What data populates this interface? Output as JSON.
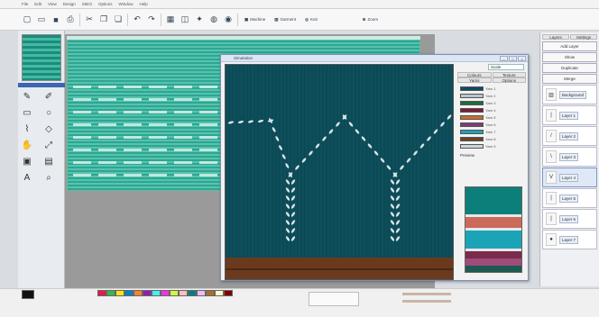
{
  "menu": [
    "File",
    "Edit",
    "View",
    "Design",
    "Stitch",
    "Options",
    "Window",
    "Help"
  ],
  "toolbar": {
    "zoom_label": "Zoom",
    "buttons": [
      {
        "icon": "new-file-icon",
        "glyph": "▢"
      },
      {
        "icon": "open-folder-icon",
        "glyph": "▭"
      },
      {
        "icon": "save-icon",
        "glyph": "■"
      },
      {
        "icon": "print-icon",
        "glyph": "⎙"
      },
      {
        "icon": "cut-icon",
        "glyph": "✂"
      },
      {
        "icon": "copy-icon",
        "glyph": "❐"
      },
      {
        "icon": "paste-icon",
        "glyph": "❏"
      },
      {
        "icon": "undo-icon",
        "glyph": "↶"
      },
      {
        "icon": "redo-icon",
        "glyph": "↷"
      },
      {
        "icon": "grid-icon",
        "glyph": "▦"
      },
      {
        "icon": "chart-icon",
        "glyph": "◫"
      },
      {
        "icon": "stitch-icon",
        "glyph": "✦"
      },
      {
        "icon": "yarn-icon",
        "glyph": "◍"
      },
      {
        "icon": "camera-icon",
        "glyph": "◉"
      }
    ],
    "text_buttons": [
      {
        "icon": "machine-icon",
        "label": "Machine"
      },
      {
        "icon": "sweater-icon",
        "label": "Garment"
      },
      {
        "icon": "knit-icon",
        "label": "Knit"
      }
    ]
  },
  "tools": [
    "✎",
    "✐",
    "▭",
    "○",
    "⌇",
    "◇",
    "✋",
    "⤢",
    "▣",
    "▤",
    "A",
    "⌕"
  ],
  "dialog": {
    "title": "Simulation",
    "side": {
      "field_value": "Scale",
      "tabs": [
        "Colours",
        "Texture",
        "Yarns",
        "Options"
      ],
      "swatches": [
        {
          "label": "Yarn 1",
          "color": "#0f4a63"
        },
        {
          "label": "Yarn 2",
          "color": "#b9c6cc"
        },
        {
          "label": "Yarn 3",
          "color": "#1c6e3a"
        },
        {
          "label": "Yarn 4",
          "color": "#7a1d34"
        },
        {
          "label": "Yarn 5",
          "color": "#c86e2b"
        },
        {
          "label": "Yarn 6",
          "color": "#7d3b7f"
        },
        {
          "label": "Yarn 7",
          "color": "#1ba3b8"
        },
        {
          "label": "Yarn 8",
          "color": "#6a4426"
        },
        {
          "label": "Yarn 9",
          "color": "#ccd6da"
        }
      ],
      "preview_title": "Preview"
    }
  },
  "layers_panel": {
    "tabs": [
      "Layers",
      "Settings"
    ],
    "top_buttons": [
      "Add Layer",
      "Show",
      "Duplicate",
      "Merge"
    ],
    "layers": [
      {
        "label": "Background",
        "glyph": "▥"
      },
      {
        "label": "Layer 1",
        "glyph": "|"
      },
      {
        "label": "Layer 2",
        "glyph": "/"
      },
      {
        "label": "Layer 3",
        "glyph": "\\"
      },
      {
        "label": "Layer 4",
        "glyph": "V"
      },
      {
        "label": "Layer 5",
        "glyph": "|"
      },
      {
        "label": "Layer 6",
        "glyph": "|"
      },
      {
        "label": "Layer 7",
        "glyph": "●"
      }
    ]
  },
  "colors": {
    "fabric_teal": "#0e4f5c",
    "fabric_brown": "#6b3a1e",
    "stitch_white": "#d8e4e6",
    "design_green": "#2fa592"
  },
  "palette": [
    "#e6194b",
    "#3cb44b",
    "#ffe119",
    "#0082c8",
    "#f58231",
    "#911eb4",
    "#46f0f0",
    "#f032e6",
    "#d2f53c",
    "#fabebe",
    "#008080",
    "#e6beff",
    "#aa6e28",
    "#fffac8",
    "#800000"
  ]
}
